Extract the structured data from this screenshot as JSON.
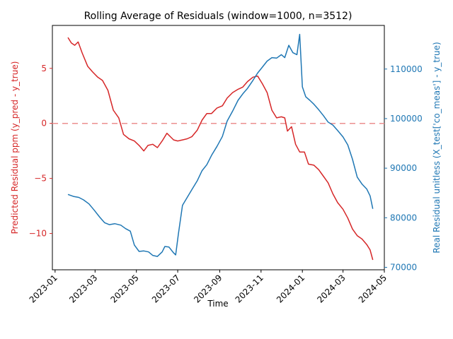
{
  "chart_data": {
    "type": "line",
    "title": "Rolling Average of Residuals (window=1000, n=3512)",
    "xlabel": "Time",
    "ylabel_left": "Predicted Residual ppm (y_pred - y_true)",
    "ylabel_right": "Real Residual unitless (X_test['co_meas'] - y_true)",
    "xlim": [
      "2022-12-28",
      "2024-05-01"
    ],
    "ylim_left": [
      -13.3,
      8.9
    ],
    "ylim_right": [
      69500,
      118800
    ],
    "x_ticks": [
      "2023-01",
      "2023-03",
      "2023-05",
      "2023-07",
      "2023-09",
      "2023-11",
      "2024-01",
      "2024-03",
      "2024-05"
    ],
    "y_ticks_left": [
      -10,
      -5,
      0,
      5
    ],
    "y_ticks_right": [
      70000,
      80000,
      90000,
      100000,
      110000
    ],
    "reference_line": {
      "axis": "left",
      "y": 0,
      "style": "dashed",
      "color": "#ec8f8f"
    },
    "series": [
      {
        "axis": "left",
        "color": "#d62728",
        "x": [
          "2023-01-20",
          "2023-01-25",
          "2023-01-30",
          "2023-02-04",
          "2023-02-10",
          "2023-02-18",
          "2023-02-25",
          "2023-03-05",
          "2023-03-12",
          "2023-03-20",
          "2023-03-28",
          "2023-04-05",
          "2023-04-12",
          "2023-04-20",
          "2023-04-28",
          "2023-05-05",
          "2023-05-12",
          "2023-05-18",
          "2023-05-25",
          "2023-06-01",
          "2023-06-08",
          "2023-06-15",
          "2023-06-20",
          "2023-06-25",
          "2023-07-01",
          "2023-07-08",
          "2023-07-15",
          "2023-07-22",
          "2023-07-30",
          "2023-08-06",
          "2023-08-13",
          "2023-08-20",
          "2023-08-28",
          "2023-09-05",
          "2023-09-12",
          "2023-09-20",
          "2023-09-28",
          "2023-10-05",
          "2023-10-12",
          "2023-10-20",
          "2023-10-27",
          "2023-11-03",
          "2023-11-10",
          "2023-11-17",
          "2023-11-24",
          "2023-12-01",
          "2023-12-06",
          "2023-12-10",
          "2023-12-16",
          "2023-12-22",
          "2023-12-28",
          "2024-01-04",
          "2024-01-10",
          "2024-01-18",
          "2024-01-25",
          "2024-02-01",
          "2024-02-08",
          "2024-02-15",
          "2024-02-22",
          "2024-03-01",
          "2024-03-08",
          "2024-03-15",
          "2024-03-22",
          "2024-03-29",
          "2024-04-05",
          "2024-04-10",
          "2024-04-14"
        ],
        "values": [
          7.8,
          7.3,
          7.1,
          7.4,
          6.4,
          5.2,
          4.7,
          4.2,
          3.9,
          3.0,
          1.2,
          0.5,
          -1.0,
          -1.4,
          -1.6,
          -2.0,
          -2.5,
          -2.0,
          -1.9,
          -2.2,
          -1.6,
          -0.9,
          -1.2,
          -1.5,
          -1.6,
          -1.5,
          -1.4,
          -1.2,
          -0.6,
          0.3,
          0.9,
          0.9,
          1.4,
          1.6,
          2.3,
          2.8,
          3.1,
          3.3,
          3.8,
          4.2,
          4.3,
          3.6,
          2.8,
          1.2,
          0.5,
          0.6,
          0.5,
          -0.7,
          -0.3,
          -1.9,
          -2.6,
          -2.6,
          -3.7,
          -3.8,
          -4.2,
          -4.8,
          -5.4,
          -6.4,
          -7.2,
          -7.8,
          -8.6,
          -9.6,
          -10.2,
          -10.5,
          -11.0,
          -11.5,
          -12.4
        ]
      },
      {
        "axis": "right",
        "color": "#1f77b4",
        "x": [
          "2023-01-20",
          "2023-01-28",
          "2023-02-05",
          "2023-02-12",
          "2023-02-20",
          "2023-02-28",
          "2023-03-08",
          "2023-03-15",
          "2023-03-22",
          "2023-03-30",
          "2023-04-08",
          "2023-04-15",
          "2023-04-22",
          "2023-04-28",
          "2023-05-05",
          "2023-05-12",
          "2023-05-19",
          "2023-05-25",
          "2023-06-01",
          "2023-06-08",
          "2023-06-12",
          "2023-06-18",
          "2023-06-25",
          "2023-06-28",
          "2023-07-02",
          "2023-07-08",
          "2023-07-15",
          "2023-07-22",
          "2023-07-30",
          "2023-08-06",
          "2023-08-13",
          "2023-08-20",
          "2023-08-28",
          "2023-09-05",
          "2023-09-12",
          "2023-09-20",
          "2023-09-28",
          "2023-10-05",
          "2023-10-12",
          "2023-10-20",
          "2023-10-27",
          "2023-11-03",
          "2023-11-10",
          "2023-11-17",
          "2023-11-24",
          "2023-12-01",
          "2023-12-06",
          "2023-12-12",
          "2023-12-18",
          "2023-12-24",
          "2023-12-28",
          "2024-01-01",
          "2024-01-06",
          "2024-01-12",
          "2024-01-18",
          "2024-01-25",
          "2024-02-01",
          "2024-02-08",
          "2024-02-15",
          "2024-02-22",
          "2024-03-01",
          "2024-03-08",
          "2024-03-15",
          "2024-03-22",
          "2024-03-29",
          "2024-04-05",
          "2024-04-10",
          "2024-04-14"
        ],
        "values": [
          84700,
          84300,
          84100,
          83600,
          82800,
          81500,
          80100,
          79000,
          78600,
          78800,
          78500,
          77800,
          77300,
          74500,
          73200,
          73300,
          73100,
          72400,
          72200,
          73100,
          74200,
          74100,
          72900,
          72500,
          76700,
          82500,
          84100,
          85700,
          87500,
          89500,
          90700,
          92600,
          94400,
          96400,
          99500,
          101500,
          103700,
          105000,
          106100,
          107700,
          109200,
          110400,
          111600,
          112300,
          112200,
          112900,
          112300,
          114800,
          113300,
          112900,
          117000,
          106400,
          104400,
          103700,
          102900,
          101800,
          100600,
          99300,
          98700,
          97600,
          96300,
          94700,
          91800,
          88200,
          86800,
          85800,
          84400,
          81800
        ]
      }
    ]
  }
}
